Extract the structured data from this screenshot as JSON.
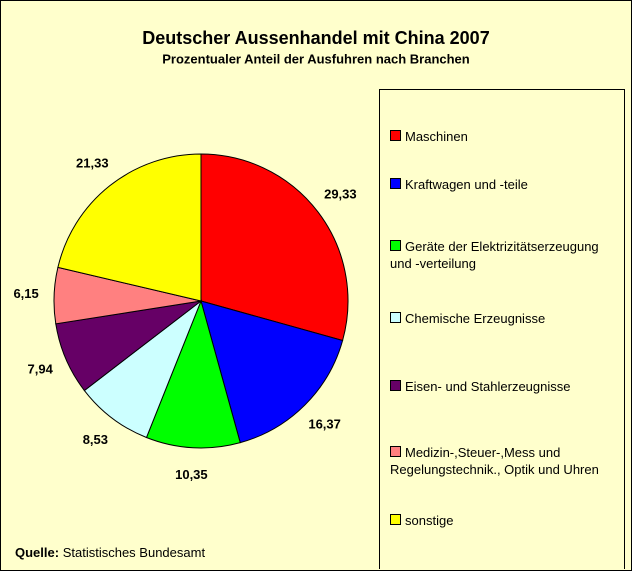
{
  "chart_data": {
    "type": "pie",
    "title": "Deutscher Aussenhandel mit China 2007",
    "subtitle": "Prozentualer Anteil der Ausfuhren nach Branchen",
    "categories": [
      "Maschinen",
      "Kraftwagen und -teile",
      "Geräte der Elektrizitätserzeugung und -verteilung",
      "Chemische Erzeugnisse",
      "Eisen- und Stahlerzeugnisse",
      "Medizin-,Steuer-,Mess und Regelungstechnik., Optik und Uhren",
      "sonstige"
    ],
    "values": [
      29.33,
      16.37,
      10.35,
      8.53,
      7.94,
      6.15,
      21.33
    ],
    "value_labels": [
      "29,33",
      "16,37",
      "10,35",
      "8,53",
      "7,94",
      "6,15",
      "21,33"
    ],
    "colors": [
      "#ff0000",
      "#0000ff",
      "#00ff00",
      "#ccffff",
      "#660066",
      "#ff8080",
      "#ffff00"
    ],
    "source_label": "Quelle:",
    "source": "Statistisches Bundesamt"
  }
}
